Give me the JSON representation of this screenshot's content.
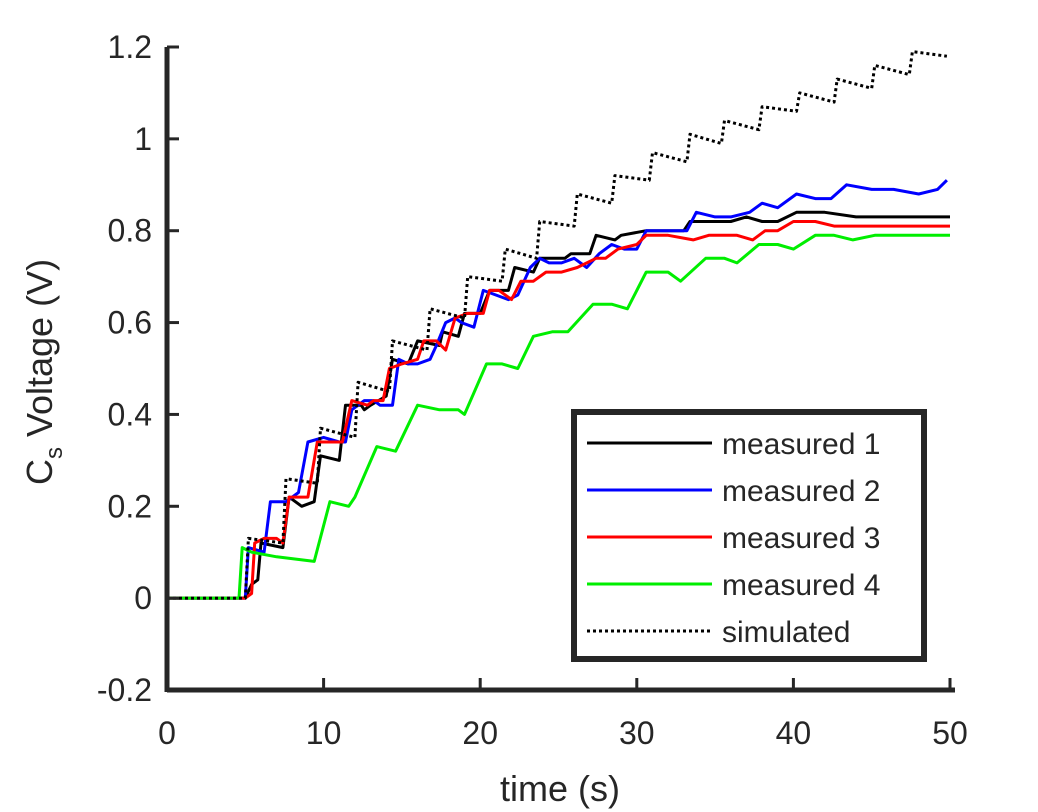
{
  "chart_data": {
    "type": "line",
    "title": "",
    "xlabel": "time (s)",
    "ylabel_main": "C",
    "ylabel_sub": "s",
    "ylabel_rest": " Voltage (V)",
    "xlim": [
      0,
      50
    ],
    "ylim": [
      -0.2,
      1.2
    ],
    "xticks": [
      0,
      10,
      20,
      30,
      40,
      50
    ],
    "yticks": [
      -0.2,
      0,
      0.2,
      0.4,
      0.6,
      0.8,
      1,
      1.2
    ],
    "xtick_labels": [
      "0",
      "10",
      "20",
      "30",
      "40",
      "50"
    ],
    "ytick_labels": [
      "-0.2",
      "0",
      "0.2",
      "0.4",
      "0.6",
      "0.8",
      "1",
      "1.2"
    ],
    "grid": false,
    "legend_position": "bottom-right",
    "series": [
      {
        "name": "measured 1",
        "color": "#000000",
        "style": "solid",
        "points": [
          [
            0,
            0
          ],
          [
            5.0,
            0
          ],
          [
            5.4,
            0.03
          ],
          [
            5.8,
            0.04
          ],
          [
            6.0,
            0.12
          ],
          [
            7.4,
            0.11
          ],
          [
            7.8,
            0.22
          ],
          [
            8.6,
            0.2
          ],
          [
            9.4,
            0.21
          ],
          [
            9.8,
            0.31
          ],
          [
            11.0,
            0.3
          ],
          [
            11.4,
            0.42
          ],
          [
            12.4,
            0.42
          ],
          [
            12.6,
            0.41
          ],
          [
            13.0,
            0.42
          ],
          [
            14.0,
            0.44
          ],
          [
            14.4,
            0.52
          ],
          [
            15.4,
            0.51
          ],
          [
            16.0,
            0.56
          ],
          [
            17.4,
            0.55
          ],
          [
            17.6,
            0.58
          ],
          [
            18.6,
            0.57
          ],
          [
            19.0,
            0.62
          ],
          [
            20.0,
            0.62
          ],
          [
            20.6,
            0.67
          ],
          [
            21.8,
            0.67
          ],
          [
            22.2,
            0.72
          ],
          [
            23.4,
            0.71
          ],
          [
            23.8,
            0.74
          ],
          [
            25.4,
            0.74
          ],
          [
            25.8,
            0.75
          ],
          [
            27.0,
            0.75
          ],
          [
            27.4,
            0.79
          ],
          [
            28.6,
            0.78
          ],
          [
            29.0,
            0.79
          ],
          [
            30.6,
            0.8
          ],
          [
            32.0,
            0.8
          ],
          [
            33.0,
            0.8
          ],
          [
            33.4,
            0.82
          ],
          [
            35.0,
            0.82
          ],
          [
            36.0,
            0.82
          ],
          [
            37.0,
            0.83
          ],
          [
            38.0,
            0.82
          ],
          [
            39.0,
            0.82
          ],
          [
            40.2,
            0.84
          ],
          [
            42.0,
            0.84
          ],
          [
            44.0,
            0.83
          ],
          [
            46.0,
            0.83
          ],
          [
            48.0,
            0.83
          ],
          [
            50.0,
            0.83
          ]
        ]
      },
      {
        "name": "measured 2",
        "color": "#0000ff",
        "style": "solid",
        "points": [
          [
            0,
            0
          ],
          [
            5.0,
            0
          ],
          [
            5.2,
            0.11
          ],
          [
            6.2,
            0.1
          ],
          [
            6.6,
            0.21
          ],
          [
            7.6,
            0.21
          ],
          [
            8.4,
            0.23
          ],
          [
            9.0,
            0.34
          ],
          [
            10.0,
            0.35
          ],
          [
            11.0,
            0.34
          ],
          [
            11.4,
            0.34
          ],
          [
            11.8,
            0.41
          ],
          [
            12.6,
            0.43
          ],
          [
            13.2,
            0.43
          ],
          [
            13.6,
            0.42
          ],
          [
            14.4,
            0.42
          ],
          [
            14.8,
            0.52
          ],
          [
            15.4,
            0.51
          ],
          [
            16.0,
            0.51
          ],
          [
            16.8,
            0.52
          ],
          [
            17.2,
            0.55
          ],
          [
            17.8,
            0.6
          ],
          [
            18.4,
            0.61
          ],
          [
            18.8,
            0.6
          ],
          [
            19.6,
            0.59
          ],
          [
            20.2,
            0.67
          ],
          [
            21.0,
            0.66
          ],
          [
            21.8,
            0.65
          ],
          [
            22.4,
            0.66
          ],
          [
            23.2,
            0.72
          ],
          [
            23.8,
            0.74
          ],
          [
            24.4,
            0.73
          ],
          [
            25.2,
            0.73
          ],
          [
            26.0,
            0.74
          ],
          [
            26.8,
            0.72
          ],
          [
            27.6,
            0.75
          ],
          [
            28.4,
            0.77
          ],
          [
            29.2,
            0.76
          ],
          [
            30.0,
            0.76
          ],
          [
            30.6,
            0.8
          ],
          [
            31.4,
            0.8
          ],
          [
            32.2,
            0.8
          ],
          [
            33.2,
            0.8
          ],
          [
            33.8,
            0.84
          ],
          [
            35.0,
            0.83
          ],
          [
            36.0,
            0.83
          ],
          [
            37.2,
            0.84
          ],
          [
            38.0,
            0.86
          ],
          [
            39.0,
            0.85
          ],
          [
            40.2,
            0.88
          ],
          [
            41.4,
            0.87
          ],
          [
            42.4,
            0.87
          ],
          [
            43.4,
            0.9
          ],
          [
            45.0,
            0.89
          ],
          [
            46.4,
            0.89
          ],
          [
            48.0,
            0.88
          ],
          [
            49.2,
            0.89
          ],
          [
            49.8,
            0.91
          ]
        ]
      },
      {
        "name": "measured 3",
        "color": "#ff0000",
        "style": "solid",
        "points": [
          [
            0,
            0
          ],
          [
            5.0,
            0
          ],
          [
            5.4,
            0.01
          ],
          [
            5.6,
            0.12
          ],
          [
            6.2,
            0.13
          ],
          [
            7.0,
            0.13
          ],
          [
            7.4,
            0.12
          ],
          [
            7.8,
            0.22
          ],
          [
            8.4,
            0.22
          ],
          [
            9.0,
            0.22
          ],
          [
            9.6,
            0.34
          ],
          [
            10.6,
            0.34
          ],
          [
            11.2,
            0.34
          ],
          [
            11.8,
            0.43
          ],
          [
            12.8,
            0.42
          ],
          [
            13.2,
            0.43
          ],
          [
            13.8,
            0.43
          ],
          [
            14.2,
            0.5
          ],
          [
            15.0,
            0.51
          ],
          [
            16.0,
            0.52
          ],
          [
            16.4,
            0.56
          ],
          [
            17.2,
            0.56
          ],
          [
            17.8,
            0.54
          ],
          [
            18.4,
            0.61
          ],
          [
            19.2,
            0.62
          ],
          [
            20.2,
            0.62
          ],
          [
            20.6,
            0.67
          ],
          [
            21.2,
            0.67
          ],
          [
            22.0,
            0.65
          ],
          [
            22.6,
            0.69
          ],
          [
            23.4,
            0.69
          ],
          [
            24.2,
            0.71
          ],
          [
            25.2,
            0.71
          ],
          [
            26.2,
            0.72
          ],
          [
            27.4,
            0.74
          ],
          [
            28.0,
            0.74
          ],
          [
            28.8,
            0.76
          ],
          [
            30.0,
            0.77
          ],
          [
            30.6,
            0.79
          ],
          [
            32.0,
            0.79
          ],
          [
            33.6,
            0.78
          ],
          [
            34.6,
            0.79
          ],
          [
            35.4,
            0.79
          ],
          [
            36.4,
            0.79
          ],
          [
            37.4,
            0.78
          ],
          [
            38.2,
            0.8
          ],
          [
            39.0,
            0.8
          ],
          [
            40.0,
            0.82
          ],
          [
            41.4,
            0.82
          ],
          [
            42.6,
            0.81
          ],
          [
            44.0,
            0.81
          ],
          [
            45.4,
            0.81
          ],
          [
            47.0,
            0.81
          ],
          [
            48.4,
            0.81
          ],
          [
            50.0,
            0.81
          ]
        ]
      },
      {
        "name": "measured 4",
        "color": "#00ee00",
        "style": "solid",
        "points": [
          [
            0,
            0
          ],
          [
            4.6,
            0
          ],
          [
            4.8,
            0.11
          ],
          [
            5.4,
            0.1
          ],
          [
            7.0,
            0.09
          ],
          [
            9.4,
            0.08
          ],
          [
            10.4,
            0.21
          ],
          [
            11.6,
            0.2
          ],
          [
            12.0,
            0.22
          ],
          [
            13.4,
            0.33
          ],
          [
            14.6,
            0.32
          ],
          [
            16.0,
            0.42
          ],
          [
            17.4,
            0.41
          ],
          [
            18.6,
            0.41
          ],
          [
            19.0,
            0.4
          ],
          [
            20.4,
            0.51
          ],
          [
            21.4,
            0.51
          ],
          [
            22.4,
            0.5
          ],
          [
            23.4,
            0.57
          ],
          [
            24.6,
            0.58
          ],
          [
            25.6,
            0.58
          ],
          [
            27.2,
            0.64
          ],
          [
            28.4,
            0.64
          ],
          [
            29.4,
            0.63
          ],
          [
            30.6,
            0.71
          ],
          [
            32.0,
            0.71
          ],
          [
            32.8,
            0.69
          ],
          [
            34.4,
            0.74
          ],
          [
            35.6,
            0.74
          ],
          [
            36.4,
            0.73
          ],
          [
            37.8,
            0.77
          ],
          [
            39.0,
            0.77
          ],
          [
            40.0,
            0.76
          ],
          [
            41.4,
            0.79
          ],
          [
            42.6,
            0.79
          ],
          [
            43.8,
            0.78
          ],
          [
            45.2,
            0.79
          ],
          [
            46.6,
            0.79
          ],
          [
            48.0,
            0.79
          ],
          [
            50.0,
            0.79
          ]
        ]
      },
      {
        "name": "simulated",
        "color": "#000000",
        "style": "dotted",
        "points": [
          [
            0,
            0
          ],
          [
            5.0,
            0
          ],
          [
            5.2,
            0.13
          ],
          [
            7.4,
            0.12
          ],
          [
            7.6,
            0.26
          ],
          [
            9.6,
            0.25
          ],
          [
            9.8,
            0.37
          ],
          [
            12.0,
            0.35
          ],
          [
            12.2,
            0.47
          ],
          [
            14.2,
            0.45
          ],
          [
            14.4,
            0.56
          ],
          [
            16.6,
            0.54
          ],
          [
            16.8,
            0.63
          ],
          [
            19.0,
            0.61
          ],
          [
            19.2,
            0.7
          ],
          [
            21.4,
            0.69
          ],
          [
            21.6,
            0.76
          ],
          [
            23.6,
            0.74
          ],
          [
            23.8,
            0.82
          ],
          [
            26.0,
            0.81
          ],
          [
            26.2,
            0.88
          ],
          [
            28.4,
            0.86
          ],
          [
            28.6,
            0.92
          ],
          [
            30.8,
            0.91
          ],
          [
            31.0,
            0.97
          ],
          [
            33.2,
            0.95
          ],
          [
            33.4,
            1.01
          ],
          [
            35.4,
            0.99
          ],
          [
            35.6,
            1.04
          ],
          [
            37.8,
            1.02
          ],
          [
            38.0,
            1.07
          ],
          [
            40.2,
            1.06
          ],
          [
            40.4,
            1.1
          ],
          [
            42.6,
            1.08
          ],
          [
            42.8,
            1.13
          ],
          [
            45.0,
            1.11
          ],
          [
            45.2,
            1.16
          ],
          [
            47.4,
            1.14
          ],
          [
            47.6,
            1.19
          ],
          [
            49.8,
            1.18
          ]
        ]
      }
    ]
  }
}
